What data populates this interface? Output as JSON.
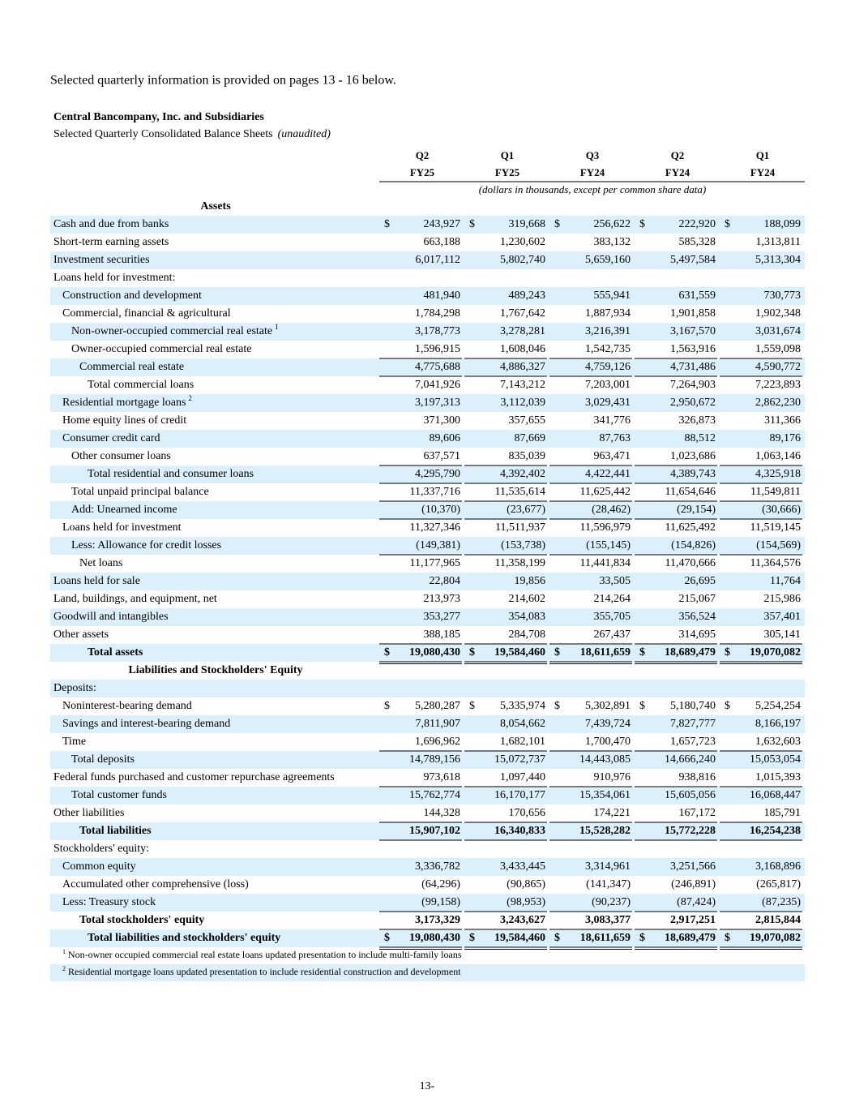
{
  "intro": "Selected quarterly information is provided on pages 13 - 16 below.",
  "company": "Central Bancompany, Inc. and Subsidiaries",
  "subtitle": "Selected Quarterly Consolidated Balance Sheets",
  "subtitle_note": "(unaudited)",
  "columns": [
    {
      "quarter": "Q2",
      "year": "FY25"
    },
    {
      "quarter": "Q1",
      "year": "FY25"
    },
    {
      "quarter": "Q3",
      "year": "FY24"
    },
    {
      "quarter": "Q2",
      "year": "FY24"
    },
    {
      "quarter": "Q1",
      "year": "FY24"
    }
  ],
  "units_note": "(dollars in thousands, except per common share data)",
  "rows": [
    {
      "label": "Assets"
    },
    {
      "label": "Cash and due from banks",
      "currency": "$",
      "values": [
        "243,927",
        "319,668",
        "256,622",
        "222,920",
        "188,099"
      ]
    },
    {
      "label": "Short-term earning assets",
      "values": [
        "663,188",
        "1,230,602",
        "383,132",
        "585,328",
        "1,313,811"
      ]
    },
    {
      "label": "Investment securities",
      "values": [
        "6,017,112",
        "5,802,740",
        "5,659,160",
        "5,497,584",
        "5,313,304"
      ]
    },
    {
      "label": "Loans held for investment:"
    },
    {
      "label": "Construction and development",
      "values": [
        "481,940",
        "489,243",
        "555,941",
        "631,559",
        "730,773"
      ]
    },
    {
      "label": "Commercial, financial & agricultural",
      "values": [
        "1,784,298",
        "1,767,642",
        "1,887,934",
        "1,901,858",
        "1,902,348"
      ]
    },
    {
      "label": "Non-owner-occupied commercial real estate",
      "note": "1",
      "values": [
        "3,178,773",
        "3,278,281",
        "3,216,391",
        "3,167,570",
        "3,031,674"
      ]
    },
    {
      "label": "Owner-occupied commercial real estate",
      "values": [
        "1,596,915",
        "1,608,046",
        "1,542,735",
        "1,563,916",
        "1,559,098"
      ]
    },
    {
      "label": "Commercial real estate",
      "values": [
        "4,775,688",
        "4,886,327",
        "4,759,126",
        "4,731,486",
        "4,590,772"
      ]
    },
    {
      "label": "Total commercial loans",
      "values": [
        "7,041,926",
        "7,143,212",
        "7,203,001",
        "7,264,903",
        "7,223,893"
      ]
    },
    {
      "label": "Residential mortgage loans",
      "note": "2",
      "values": [
        "3,197,313",
        "3,112,039",
        "3,029,431",
        "2,950,672",
        "2,862,230"
      ]
    },
    {
      "label": "Home equity lines of credit",
      "values": [
        "371,300",
        "357,655",
        "341,776",
        "326,873",
        "311,366"
      ]
    },
    {
      "label": "Consumer credit card",
      "values": [
        "89,606",
        "87,669",
        "87,763",
        "88,512",
        "89,176"
      ]
    },
    {
      "label": "Other consumer loans",
      "values": [
        "637,571",
        "835,039",
        "963,471",
        "1,023,686",
        "1,063,146"
      ]
    },
    {
      "label": "Total residential and consumer loans",
      "values": [
        "4,295,790",
        "4,392,402",
        "4,422,441",
        "4,389,743",
        "4,325,918"
      ]
    },
    {
      "label": "Total unpaid principal balance",
      "values": [
        "11,337,716",
        "11,535,614",
        "11,625,442",
        "11,654,646",
        "11,549,811"
      ]
    },
    {
      "label": "Add: Unearned income",
      "values": [
        "(10,370)",
        "(23,677)",
        "(28,462)",
        "(29,154)",
        "(30,666)"
      ]
    },
    {
      "label": "Loans held for investment",
      "values": [
        "11,327,346",
        "11,511,937",
        "11,596,979",
        "11,625,492",
        "11,519,145"
      ]
    },
    {
      "label": "Less: Allowance for credit losses",
      "values": [
        "(149,381)",
        "(153,738)",
        "(155,145)",
        "(154,826)",
        "(154,569)"
      ]
    },
    {
      "label": "Net loans",
      "values": [
        "11,177,965",
        "11,358,199",
        "11,441,834",
        "11,470,666",
        "11,364,576"
      ]
    },
    {
      "label": "Loans held for sale",
      "values": [
        "22,804",
        "19,856",
        "33,505",
        "26,695",
        "11,764"
      ]
    },
    {
      "label": "Land, buildings, and equipment, net",
      "values": [
        "213,973",
        "214,602",
        "214,264",
        "215,067",
        "215,986"
      ]
    },
    {
      "label": "Goodwill and intangibles",
      "values": [
        "353,277",
        "354,083",
        "355,705",
        "356,524",
        "357,401"
      ]
    },
    {
      "label": "Other assets",
      "values": [
        "388,185",
        "284,708",
        "267,437",
        "314,695",
        "305,141"
      ]
    },
    {
      "label": "Total assets",
      "currency": "$",
      "values": [
        "19,080,430",
        "19,584,460",
        "18,611,659",
        "18,689,479",
        "19,070,082"
      ]
    },
    {
      "label": "Liabilities and Stockholders' Equity"
    },
    {
      "label": "Deposits:"
    },
    {
      "label": "Noninterest-bearing demand",
      "currency": "$",
      "values": [
        "5,280,287",
        "5,335,974",
        "5,302,891",
        "5,180,740",
        "5,254,254"
      ]
    },
    {
      "label": "Savings and interest-bearing demand",
      "values": [
        "7,811,907",
        "8,054,662",
        "7,439,724",
        "7,827,777",
        "8,166,197"
      ]
    },
    {
      "label": "Time",
      "values": [
        "1,696,962",
        "1,682,101",
        "1,700,470",
        "1,657,723",
        "1,632,603"
      ]
    },
    {
      "label": "Total deposits",
      "values": [
        "14,789,156",
        "15,072,737",
        "14,443,085",
        "14,666,240",
        "15,053,054"
      ]
    },
    {
      "label": "Federal funds purchased and customer repurchase agreements",
      "values": [
        "973,618",
        "1,097,440",
        "910,976",
        "938,816",
        "1,015,393"
      ]
    },
    {
      "label": "Total customer funds",
      "values": [
        "15,762,774",
        "16,170,177",
        "15,354,061",
        "15,605,056",
        "16,068,447"
      ]
    },
    {
      "label": "Other liabilities",
      "values": [
        "144,328",
        "170,656",
        "174,221",
        "167,172",
        "185,791"
      ]
    },
    {
      "label": "Total liabilities",
      "values": [
        "15,907,102",
        "16,340,833",
        "15,528,282",
        "15,772,228",
        "16,254,238"
      ]
    },
    {
      "label": "Stockholders' equity:"
    },
    {
      "label": "Common equity",
      "values": [
        "3,336,782",
        "3,433,445",
        "3,314,961",
        "3,251,566",
        "3,168,896"
      ]
    },
    {
      "label": "Accumulated other comprehensive (loss)",
      "values": [
        "(64,296)",
        "(90,865)",
        "(141,347)",
        "(246,891)",
        "(265,817)"
      ]
    },
    {
      "label": "Less: Treasury stock",
      "values": [
        "(99,158)",
        "(98,953)",
        "(90,237)",
        "(87,424)",
        "(87,235)"
      ]
    },
    {
      "label": "Total stockholders' equity",
      "values": [
        "3,173,329",
        "3,243,627",
        "3,083,377",
        "2,917,251",
        "2,815,844"
      ]
    },
    {
      "label": "Total liabilities and stockholders' equity",
      "currency": "$",
      "values": [
        "19,080,430",
        "19,584,460",
        "18,611,659",
        "18,689,479",
        "19,070,082"
      ]
    }
  ],
  "footnotes": [
    {
      "mark": "1",
      "text": "Non-owner occupied commercial real estate loans updated presentation to include multi-family loans"
    },
    {
      "mark": "2",
      "text": "Residential mortgage loans updated presentation to include residential construction and development"
    }
  ],
  "page_number": "13-"
}
